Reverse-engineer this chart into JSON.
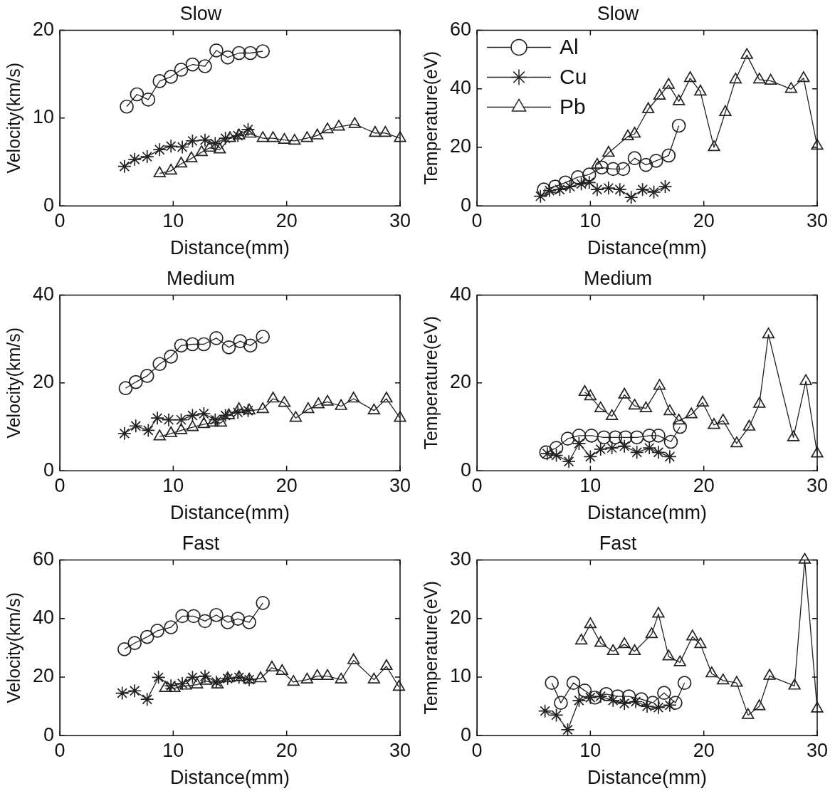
{
  "chart_data": [
    {
      "type": "line",
      "title": "Slow",
      "xlabel": "Distance(mm)",
      "ylabel": "Velocity(km/s)",
      "xlim": [
        0,
        30
      ],
      "xticks": [
        0,
        10,
        20,
        30
      ],
      "ylim": [
        0,
        20
      ],
      "yticks": [
        0,
        10,
        20
      ],
      "line_style": "solid",
      "series": [
        {
          "color": "#222222",
          "marker": "circle",
          "x": [
            5.9,
            6.8,
            7.8,
            8.8,
            9.8,
            10.7,
            11.7,
            12.8,
            13.8,
            14.8,
            15.8,
            16.8,
            17.9
          ],
          "values": [
            11.3,
            12.7,
            12.1,
            14.2,
            14.7,
            15.5,
            16.1,
            15.9,
            17.7,
            16.9,
            17.4,
            17.4,
            17.6
          ]
        },
        {
          "color": "#222222",
          "marker": "cross",
          "x": [
            5.7,
            6.6,
            7.7,
            8.8,
            9.8,
            10.8,
            11.7,
            12.8,
            13.7,
            14.6,
            15.7,
            16.6
          ],
          "values": [
            4.5,
            5.3,
            5.6,
            6.4,
            6.8,
            6.7,
            7.4,
            7.5,
            7.1,
            7.7,
            8.0,
            8.7
          ]
        },
        {
          "color": "#222222",
          "marker": "triangle",
          "x": [
            8.8,
            9.8,
            10.7,
            11.6,
            12.5,
            13.2,
            14.1,
            15.0,
            15.8,
            16.8,
            17.9,
            18.8,
            19.8,
            20.7,
            21.8,
            22.7,
            23.6,
            24.6,
            26.0,
            27.8,
            28.7,
            30.0
          ],
          "values": [
            3.7,
            4.0,
            4.8,
            5.4,
            6.1,
            6.6,
            6.4,
            7.7,
            8.0,
            8.2,
            7.7,
            7.7,
            7.5,
            7.4,
            7.7,
            8.0,
            8.7,
            9.0,
            9.3,
            8.3,
            8.3,
            7.7
          ]
        }
      ]
    },
    {
      "type": "line",
      "title": "Slow",
      "xlabel": "Distance(mm)",
      "ylabel": "Temperature(eV)",
      "xlim": [
        0,
        30
      ],
      "xticks": [
        0,
        10,
        20,
        30
      ],
      "ylim": [
        0,
        60
      ],
      "yticks": [
        0,
        20,
        40,
        60
      ],
      "line_style": "solid",
      "legend": "top left",
      "series": [
        {
          "name": "Al",
          "color": "#222222",
          "marker": "circle",
          "x": [
            5.9,
            6.9,
            7.8,
            8.9,
            9.9,
            11.0,
            12.0,
            12.9,
            13.9,
            14.9,
            15.8,
            16.9,
            17.8
          ],
          "values": [
            5.6,
            6.6,
            8.0,
            9.8,
            10.7,
            13.1,
            12.6,
            12.6,
            16.3,
            14.0,
            15.4,
            17.2,
            27.4
          ]
        },
        {
          "name": "Cu",
          "color": "#222222",
          "marker": "cross",
          "x": [
            5.6,
            6.4,
            7.3,
            8.2,
            9.2,
            9.9,
            10.6,
            11.6,
            12.6,
            13.6,
            14.6,
            15.6,
            16.6
          ],
          "values": [
            3.3,
            5.2,
            5.6,
            6.6,
            7.5,
            8.0,
            5.6,
            6.1,
            5.6,
            2.9,
            5.6,
            4.7,
            6.6
          ]
        },
        {
          "name": "Pb",
          "color": "#222222",
          "marker": "triangle",
          "x": [
            10.6,
            11.6,
            13.3,
            13.9,
            15.1,
            16.1,
            16.9,
            17.8,
            18.8,
            19.7,
            20.9,
            21.9,
            22.8,
            23.8,
            24.9,
            25.9,
            27.7,
            28.8,
            30.0
          ],
          "values": [
            14.0,
            18.1,
            23.7,
            24.6,
            33.0,
            37.6,
            41.3,
            35.7,
            43.6,
            39.0,
            20.0,
            32.0,
            43.1,
            51.5,
            43.1,
            42.7,
            39.9,
            43.6,
            20.5
          ]
        }
      ]
    },
    {
      "type": "line",
      "title": "Medium",
      "xlabel": "Distance(mm)",
      "ylabel": "Velocity(km/s)",
      "xlim": [
        0,
        30
      ],
      "xticks": [
        0,
        10,
        20,
        30
      ],
      "ylim": [
        0,
        40
      ],
      "yticks": [
        0,
        20,
        40
      ],
      "line_style": "solid",
      "series": [
        {
          "color": "#222222",
          "marker": "circle",
          "x": [
            5.8,
            6.7,
            7.7,
            8.8,
            9.8,
            10.7,
            11.7,
            12.7,
            13.8,
            14.9,
            15.9,
            16.8,
            17.9
          ],
          "values": [
            18.8,
            20.2,
            21.6,
            24.3,
            26.0,
            28.5,
            28.8,
            28.8,
            30.2,
            28.1,
            29.5,
            28.5,
            30.5
          ]
        },
        {
          "color": "#222222",
          "marker": "cross",
          "x": [
            5.7,
            6.7,
            7.8,
            8.6,
            9.6,
            10.7,
            11.7,
            12.7,
            13.7,
            14.6,
            15.7,
            16.6
          ],
          "values": [
            8.5,
            10.2,
            9.2,
            12.0,
            11.6,
            11.6,
            12.6,
            13.0,
            11.6,
            12.6,
            13.3,
            13.7
          ]
        },
        {
          "color": "#222222",
          "marker": "triangle",
          "x": [
            8.8,
            9.8,
            10.7,
            11.7,
            12.7,
            13.5,
            14.2,
            14.9,
            15.8,
            16.7,
            17.9,
            18.8,
            19.8,
            20.8,
            21.9,
            22.8,
            23.6,
            24.8,
            25.9,
            27.7,
            28.8,
            30.0
          ],
          "values": [
            7.8,
            8.5,
            9.2,
            9.9,
            10.6,
            10.9,
            10.9,
            12.6,
            14.0,
            13.7,
            14.0,
            16.4,
            15.4,
            12.0,
            14.0,
            15.1,
            15.7,
            14.7,
            16.4,
            13.7,
            16.4,
            12.0
          ]
        }
      ]
    },
    {
      "type": "line",
      "title": "Medium",
      "xlabel": "Distance(mm)",
      "ylabel": "Temperature(eV)",
      "xlim": [
        0,
        30
      ],
      "xticks": [
        0,
        10,
        20,
        30
      ],
      "ylim": [
        0,
        40
      ],
      "yticks": [
        0,
        20,
        40
      ],
      "line_style": "solid",
      "series": [
        {
          "color": "#222222",
          "marker": "circle",
          "x": [
            6.1,
            7.0,
            8.0,
            9.0,
            10.1,
            11.2,
            12.2,
            13.1,
            14.1,
            15.2,
            16.0,
            17.1,
            17.9
          ],
          "values": [
            4.2,
            5.2,
            7.3,
            8.0,
            8.0,
            7.6,
            7.6,
            7.6,
            7.6,
            8.0,
            8.0,
            6.6,
            10.0
          ]
        },
        {
          "color": "#222222",
          "marker": "cross",
          "x": [
            6.2,
            7.0,
            8.1,
            9.0,
            10.0,
            10.9,
            11.9,
            13.0,
            14.1,
            15.2,
            16.0,
            17.0
          ],
          "values": [
            3.9,
            3.5,
            2.1,
            6.2,
            3.2,
            4.9,
            5.2,
            5.6,
            4.2,
            5.2,
            4.2,
            3.2
          ]
        },
        {
          "color": "#222222",
          "marker": "triangle",
          "x": [
            9.5,
            10.0,
            10.9,
            11.9,
            13.0,
            13.9,
            14.9,
            16.1,
            17.0,
            17.8,
            18.9,
            19.9,
            20.9,
            21.7,
            22.9,
            24.0,
            24.9,
            25.7,
            27.9,
            29.0,
            30.0
          ],
          "values": [
            17.9,
            16.9,
            14.2,
            12.4,
            17.3,
            14.8,
            14.2,
            19.3,
            13.5,
            11.4,
            12.8,
            15.5,
            10.4,
            11.4,
            6.2,
            10.0,
            15.2,
            31.0,
            7.6,
            20.4,
            3.9
          ]
        }
      ]
    },
    {
      "type": "line",
      "title": "Fast",
      "xlabel": "Distance(mm)",
      "ylabel": "Velocity(km/s)",
      "xlim": [
        0,
        30
      ],
      "xticks": [
        0,
        10,
        20,
        30
      ],
      "ylim": [
        0,
        60
      ],
      "yticks": [
        0,
        20,
        40,
        60
      ],
      "line_style": "solid",
      "series": [
        {
          "color": "#222222",
          "marker": "circle",
          "x": [
            5.7,
            6.6,
            7.7,
            8.6,
            9.8,
            10.8,
            11.8,
            12.8,
            13.8,
            14.8,
            15.7,
            16.7,
            17.9
          ],
          "values": [
            29.5,
            31.6,
            33.7,
            35.8,
            37.0,
            40.8,
            40.8,
            39.1,
            41.2,
            38.7,
            39.9,
            38.7,
            45.3
          ]
        },
        {
          "color": "#222222",
          "marker": "cross",
          "x": [
            5.5,
            6.6,
            7.7,
            8.7,
            9.8,
            10.8,
            11.7,
            12.8,
            13.8,
            14.8,
            15.8,
            16.7
          ],
          "values": [
            14.5,
            15.3,
            12.4,
            19.9,
            17.0,
            17.8,
            19.9,
            20.3,
            18.3,
            19.5,
            19.9,
            19.1
          ]
        },
        {
          "color": "#222222",
          "marker": "triangle",
          "x": [
            9.3,
            10.1,
            11.1,
            12.1,
            12.9,
            13.9,
            14.8,
            15.8,
            16.7,
            17.7,
            18.7,
            19.6,
            20.6,
            21.8,
            22.7,
            23.6,
            24.8,
            25.9,
            27.7,
            28.8,
            29.9
          ],
          "values": [
            16.2,
            16.2,
            17.0,
            17.4,
            18.7,
            17.4,
            19.5,
            19.9,
            19.1,
            19.5,
            23.2,
            22.0,
            18.3,
            19.1,
            20.3,
            20.3,
            19.1,
            25.7,
            19.1,
            23.7,
            16.6
          ]
        }
      ]
    },
    {
      "type": "line",
      "title": "Fast",
      "xlabel": "Distance(mm)",
      "ylabel": "Temperature(eV)",
      "xlim": [
        0,
        30
      ],
      "xticks": [
        0,
        10,
        20,
        30
      ],
      "ylim": [
        0,
        30
      ],
      "yticks": [
        0,
        10,
        20,
        30
      ],
      "line_style": "solid",
      "series": [
        {
          "color": "#222222",
          "marker": "circle",
          "x": [
            6.6,
            7.4,
            8.5,
            9.5,
            10.4,
            11.4,
            12.4,
            13.4,
            14.5,
            15.5,
            16.5,
            17.5,
            18.3
          ],
          "values": [
            9.0,
            5.6,
            9.0,
            7.7,
            6.5,
            7.1,
            6.7,
            6.7,
            6.2,
            5.6,
            7.3,
            5.6,
            9.0
          ]
        },
        {
          "color": "#222222",
          "marker": "cross",
          "x": [
            6.0,
            7.0,
            8.0,
            9.0,
            10.0,
            10.9,
            12.0,
            13.0,
            14.0,
            15.0,
            16.0,
            17.0
          ],
          "values": [
            4.2,
            3.5,
            1.0,
            6.0,
            6.5,
            6.7,
            6.0,
            5.5,
            5.8,
            5.0,
            4.8,
            5.2
          ]
        },
        {
          "color": "#222222",
          "marker": "triangle",
          "x": [
            9.2,
            10.0,
            10.9,
            12.0,
            13.0,
            13.9,
            15.4,
            16.0,
            16.9,
            17.9,
            19.0,
            19.7,
            20.7,
            21.7,
            22.9,
            23.9,
            24.9,
            25.8,
            28.0,
            28.9,
            30.0
          ],
          "values": [
            16.2,
            19.0,
            15.8,
            14.4,
            15.6,
            14.4,
            17.3,
            20.8,
            13.5,
            12.5,
            16.9,
            15.6,
            10.6,
            9.4,
            9.0,
            3.5,
            5.0,
            10.2,
            8.5,
            30.0,
            4.6
          ]
        }
      ]
    }
  ]
}
